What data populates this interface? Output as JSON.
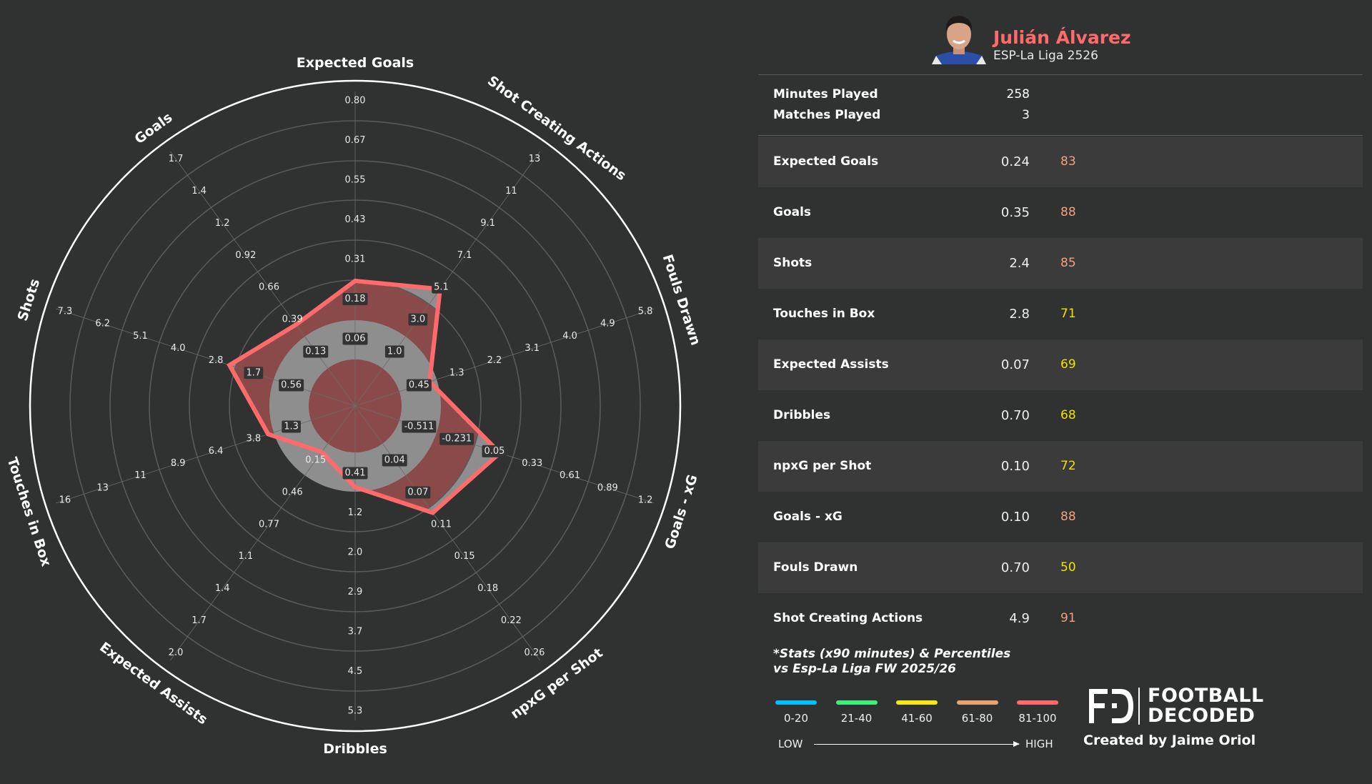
{
  "player": {
    "name": "Julián Álvarez",
    "competition": "ESP-La Liga 2526",
    "name_color": "#ff6b6b"
  },
  "meta": [
    {
      "label": "Minutes Played",
      "value": "258"
    },
    {
      "label": "Matches Played",
      "value": "3"
    }
  ],
  "stats": [
    {
      "label": "Expected Goals",
      "value": "0.24",
      "percentile": "83",
      "color": "#f2a27e"
    },
    {
      "label": "Goals",
      "value": "0.35",
      "percentile": "88",
      "color": "#f2a27e"
    },
    {
      "label": "Shots",
      "value": "2.4",
      "percentile": "85",
      "color": "#f2a27e"
    },
    {
      "label": "Touches in Box",
      "value": "2.8",
      "percentile": "71",
      "color": "#f5e000"
    },
    {
      "label": "Expected Assists",
      "value": "0.07",
      "percentile": "69",
      "color": "#f5e000"
    },
    {
      "label": "Dribbles",
      "value": "0.70",
      "percentile": "68",
      "color": "#f5e000"
    },
    {
      "label": "npxG per Shot",
      "value": "0.10",
      "percentile": "72",
      "color": "#f5e000"
    },
    {
      "label": "Goals - xG",
      "value": "0.10",
      "percentile": "88",
      "color": "#f2a27e"
    },
    {
      "label": "Fouls Drawn",
      "value": "0.70",
      "percentile": "50",
      "color": "#f5e000"
    },
    {
      "label": "Shot Creating Actions",
      "value": "4.9",
      "percentile": "91",
      "color": "#f2a27e"
    }
  ],
  "note": {
    "line1": "*Stats (x90 minutes) & Percentiles",
    "line2": "vs Esp-La Liga FW 2025/26"
  },
  "legend": {
    "items": [
      {
        "label": "0-20",
        "color": "#00bfff"
      },
      {
        "label": "21-40",
        "color": "#3cf07a"
      },
      {
        "label": "41-60",
        "color": "#f5e61a"
      },
      {
        "label": "61-80",
        "color": "#e8a46e"
      },
      {
        "label": "81-100",
        "color": "#ff6b6b"
      }
    ],
    "low": "LOW",
    "high": "HIGH"
  },
  "branding": {
    "logo_line1": "FOOTBALL",
    "logo_line2": "DECODED",
    "credit": "Created by Jaime Oriol"
  },
  "chart_data": {
    "type": "radar",
    "title": "",
    "series_color": "#ff6b6b",
    "fill_colors": [
      "#8b4a4a",
      "#8e8e8e"
    ],
    "axes": [
      {
        "name": "Expected Goals",
        "value": 0.24,
        "ticks": [
          "0.06",
          "0.18",
          "0.31",
          "0.43",
          "0.55",
          "0.67",
          "0.80"
        ]
      },
      {
        "name": "Shot Creating Actions",
        "value": 4.9,
        "ticks": [
          "1.0",
          "3.0",
          "5.1",
          "7.1",
          "9.1",
          "11",
          "13"
        ]
      },
      {
        "name": "Fouls Drawn",
        "value": 0.7,
        "ticks": [
          "0.45",
          "1.3",
          "2.2",
          "3.1",
          "4.0",
          "4.9",
          "5.8"
        ]
      },
      {
        "name": "Goals - xG",
        "value": 0.1,
        "ticks": [
          "-0.511",
          "-0.231",
          "0.05",
          "0.33",
          "0.61",
          "0.89",
          "1.2"
        ]
      },
      {
        "name": "npxG per Shot",
        "value": 0.1,
        "ticks": [
          "0.04",
          "0.07",
          "0.11",
          "0.15",
          "0.18",
          "0.22",
          "0.26"
        ]
      },
      {
        "name": "Dribbles",
        "value": 0.7,
        "ticks": [
          "0.41",
          "1.2",
          "2.0",
          "2.9",
          "3.7",
          "4.5",
          "5.3"
        ]
      },
      {
        "name": "Expected Assists",
        "value": 0.07,
        "ticks": [
          "0.15",
          "0.46",
          "0.77",
          "1.1",
          "1.4",
          "1.7",
          "2.0"
        ]
      },
      {
        "name": "Touches in Box",
        "value": 2.8,
        "ticks": [
          "1.3",
          "3.8",
          "6.4",
          "8.9",
          "11",
          "13",
          "16"
        ]
      },
      {
        "name": "Shots",
        "value": 2.4,
        "ticks": [
          "0.56",
          "1.7",
          "2.8",
          "4.0",
          "5.1",
          "6.2",
          "7.3"
        ]
      },
      {
        "name": "Goals",
        "value": 0.35,
        "ticks": [
          "0.13",
          "0.39",
          "0.66",
          "0.92",
          "1.2",
          "1.4",
          "1.7"
        ]
      }
    ]
  }
}
